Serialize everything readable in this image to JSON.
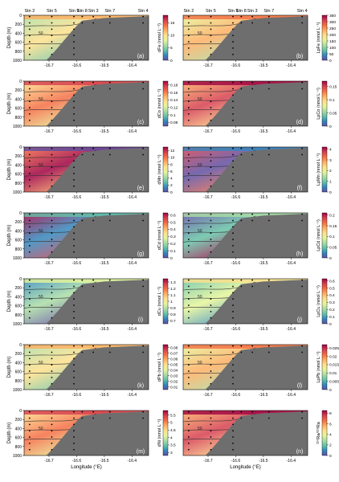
{
  "figure": {
    "station_labels": [
      "Stn 2",
      "Stn 5",
      "Stn 9",
      "Stn 8",
      "Stn 3",
      "Stn 7",
      "Stn 4"
    ],
    "station_longitudes": [
      -16.77,
      -16.69,
      -16.61,
      -16.58,
      -16.54,
      -16.48,
      -16.36
    ],
    "depth_axis_label": "Depth (m)",
    "depth_ticks": [
      0,
      200,
      400,
      600,
      800,
      1000
    ],
    "depth_range": [
      0,
      1000
    ],
    "lon_ticks": [
      -16.7,
      -16.6,
      -16.5,
      -16.4
    ],
    "lon_range": [
      -16.79,
      -16.34
    ],
    "x_axis_label": "Longitude (°E)",
    "contour_label": "50"
  },
  "chart_data": [
    {
      "panel": "a",
      "type": "heatmap",
      "quantity": "dFe",
      "unit": "(nmol L⁻¹)",
      "ticks": [
        0,
        5,
        10,
        15
      ],
      "range": [
        0,
        18
      ],
      "palette": "spectral"
    },
    {
      "panel": "b",
      "type": "heatmap",
      "quantity": "LpFe",
      "unit": "(nmol L⁻¹)",
      "ticks": [
        0,
        50,
        100,
        150,
        200,
        250,
        300,
        350
      ],
      "range": [
        0,
        350
      ],
      "palette": "spectral"
    },
    {
      "panel": "c",
      "type": "heatmap",
      "quantity": "dCo",
      "unit": "(nmol L⁻¹)",
      "ticks": [
        0.08,
        0.1,
        0.12,
        0.14,
        0.16,
        0.18
      ],
      "range": [
        0.07,
        0.19
      ],
      "palette": "spectral"
    },
    {
      "panel": "d",
      "type": "heatmap",
      "quantity": "LpCo",
      "unit": "(nmol L⁻¹)",
      "ticks": [
        0.0,
        0.05,
        0.1,
        0.15
      ],
      "range": [
        0,
        0.17
      ],
      "palette": "spectral"
    },
    {
      "panel": "e",
      "type": "heatmap",
      "quantity": "dMn",
      "unit": "(nmol L⁻¹)",
      "ticks": [
        0,
        2,
        4,
        6,
        8,
        10,
        12
      ],
      "range": [
        0,
        13
      ],
      "palette": "spectral"
    },
    {
      "panel": "f",
      "type": "heatmap",
      "quantity": "LpMn",
      "unit": "(nmol L⁻¹)",
      "ticks": [
        0,
        1,
        2,
        3,
        4
      ],
      "range": [
        0,
        4.2
      ],
      "palette": "spectral"
    },
    {
      "panel": "g",
      "type": "heatmap",
      "quantity": "dCd",
      "unit": "(nmol L⁻¹)",
      "ticks": [
        0.0,
        0.1,
        0.2,
        0.3,
        0.4,
        0.5,
        0.6
      ],
      "range": [
        0,
        0.63
      ],
      "palette": "spectral"
    },
    {
      "panel": "h",
      "type": "heatmap",
      "quantity": "LpCd",
      "unit": "(nmol L⁻¹)",
      "ticks": [
        0.0,
        0.05,
        0.1,
        0.15,
        0.2
      ],
      "range": [
        0,
        0.21
      ],
      "palette": "spectral"
    },
    {
      "panel": "i",
      "type": "heatmap",
      "quantity": "dCu",
      "unit": "(nmol L⁻¹)",
      "ticks": [
        0.7,
        0.8,
        0.9,
        1.0,
        1.1,
        1.2,
        1.3
      ],
      "range": [
        0.65,
        1.35
      ],
      "palette": "spectral"
    },
    {
      "panel": "j",
      "type": "heatmap",
      "quantity": "LpCu",
      "unit": "(nmol L⁻¹)",
      "ticks": [
        0.0,
        0.1,
        0.2,
        0.3,
        0.4,
        0.5,
        0.6
      ],
      "range": [
        0,
        0.63
      ],
      "palette": "spectral"
    },
    {
      "panel": "k",
      "type": "heatmap",
      "quantity": "dPb",
      "unit": "(nmol L⁻¹)",
      "ticks": [
        0.01,
        0.02,
        0.03,
        0.04,
        0.05,
        0.06,
        0.07,
        0.08
      ],
      "range": [
        0.005,
        0.085
      ],
      "palette": "spectral"
    },
    {
      "panel": "l",
      "type": "heatmap",
      "quantity": "LpPb",
      "unit": "(nmol L⁻¹)",
      "ticks": [
        0.0,
        0.005,
        0.01,
        0.015,
        0.02,
        0.025
      ],
      "range": [
        0,
        0.027
      ],
      "palette": "spectral"
    },
    {
      "panel": "m",
      "type": "heatmap",
      "quantity": "dNi",
      "unit": "(nmol L⁻¹)",
      "ticks": [
        3.0,
        3.5,
        4.0,
        4.5,
        5.0,
        5.5
      ],
      "range": [
        2.8,
        5.8
      ],
      "palette": "spectral"
    },
    {
      "panel": "n",
      "type": "heatmap",
      "quantity": "²²⁴Ra/²²⁸Ra",
      "unit": "",
      "ticks": [
        0,
        2,
        4,
        6,
        8
      ],
      "range": [
        0,
        8.5
      ],
      "palette": "spectral"
    }
  ]
}
